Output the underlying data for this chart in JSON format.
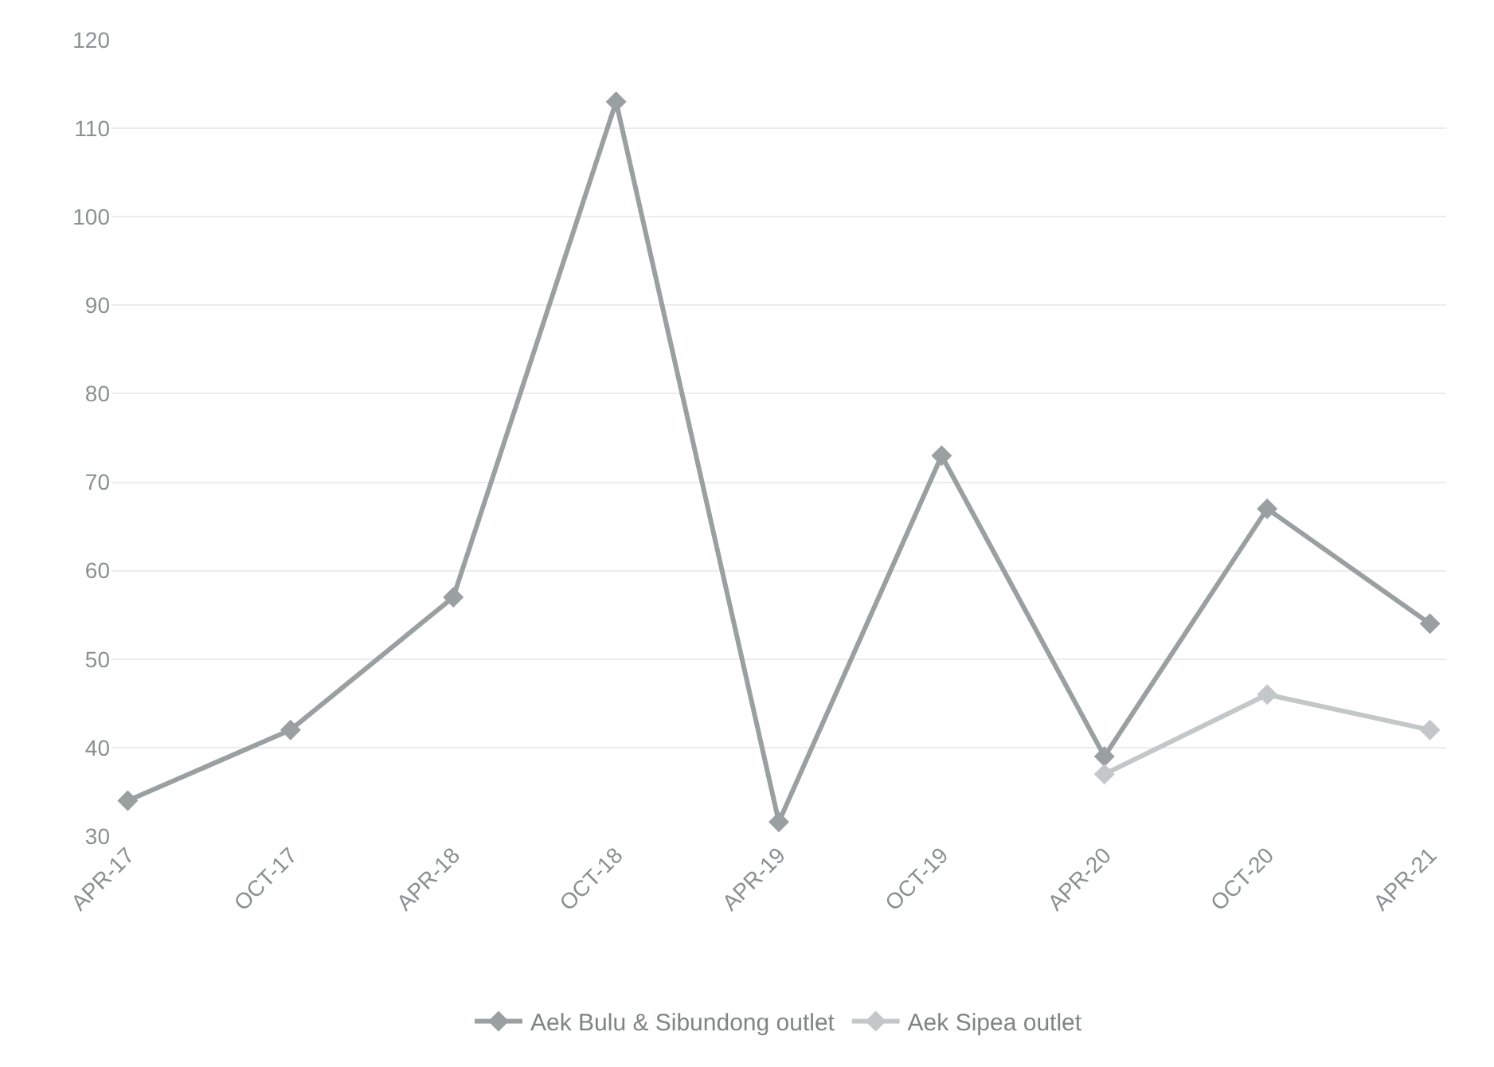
{
  "chart_data": {
    "type": "line",
    "categories": [
      "APR-17",
      "OCT-17",
      "APR-18",
      "OCT-18",
      "APR-19",
      "OCT-19",
      "APR-20",
      "OCT-20",
      "APR-21"
    ],
    "series": [
      {
        "name": "Aek Bulu & Sibundong outlet",
        "color": "#9a9f9f",
        "values": [
          34,
          42,
          57,
          113,
          31.6,
          73,
          39,
          67,
          54
        ]
      },
      {
        "name": "Aek Sipea outlet",
        "color": "#c3c7c7",
        "values": [
          null,
          null,
          null,
          null,
          null,
          null,
          37,
          46,
          42
        ]
      }
    ],
    "ylim": [
      30,
      120
    ],
    "yticks": [
      30,
      40,
      50,
      60,
      70,
      80,
      90,
      100,
      110,
      120
    ],
    "grid": "y",
    "legend": "bottom",
    "marker": "diamond",
    "line_style": "solid"
  }
}
